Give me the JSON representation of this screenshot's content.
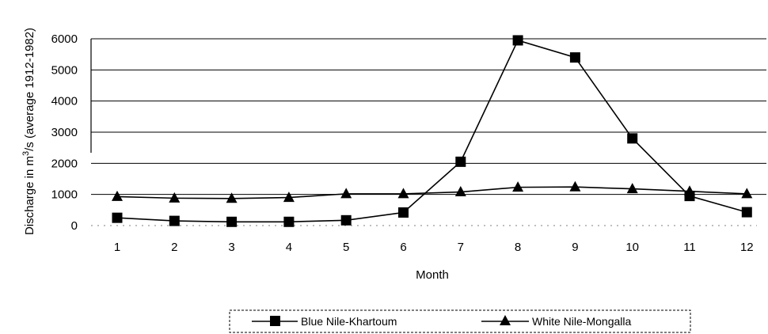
{
  "chart_data": {
    "type": "line",
    "title": "",
    "xlabel": "Month",
    "ylabel_parts": [
      "Discharge in m",
      "3",
      "/s (average 1912-1982)"
    ],
    "categories": [
      "1",
      "2",
      "3",
      "4",
      "5",
      "6",
      "7",
      "8",
      "9",
      "10",
      "11",
      "12"
    ],
    "y_ticks": [
      "0",
      "1000",
      "2000",
      "3000",
      "4000",
      "5000",
      "6000"
    ],
    "ylim": [
      0,
      6000
    ],
    "grid": true,
    "legend_position": "bottom",
    "series": [
      {
        "name": "Blue Nile-Khartoum",
        "marker": "square",
        "color": "#000000",
        "values": [
          250,
          150,
          120,
          120,
          170,
          420,
          2050,
          5950,
          5400,
          2800,
          950,
          430
        ]
      },
      {
        "name": "White Nile-Mongalla",
        "marker": "triangle",
        "color": "#000000",
        "values": [
          930,
          880,
          870,
          900,
          1020,
          1020,
          1080,
          1230,
          1240,
          1180,
          1100,
          1020
        ]
      }
    ]
  }
}
